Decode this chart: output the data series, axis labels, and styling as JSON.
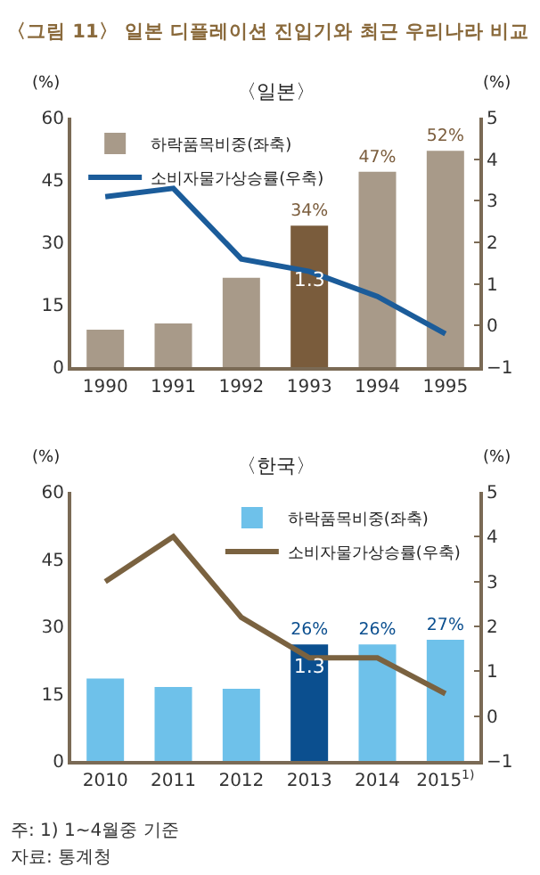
{
  "chart_data": [
    {
      "type": "bar",
      "title": "〈그림 11〉 일본 디플레이션 진입기와 최근 우리나라 비교",
      "subtitle": "〈일본〉",
      "ylabel": "(%)",
      "y2label": "(%)",
      "categories": [
        "1990",
        "1991",
        "1992",
        "1993",
        "1994",
        "1995"
      ],
      "series": [
        {
          "name": "하락품목비중(좌축)",
          "color": "#a89a89",
          "colors": [
            "#a89a89",
            "#a89a89",
            "#a89a89",
            "#7a5c3c",
            "#a89a89",
            "#a89a89"
          ],
          "values": [
            9,
            10.5,
            21.5,
            34,
            47,
            52
          ],
          "value_labels": [
            null,
            null,
            null,
            "34%",
            "47%",
            "52%"
          ]
        },
        {
          "name": "소비자물가상승률(우축)",
          "type": "line",
          "axis": "y2",
          "color": "#1b5c9a",
          "values": [
            3.1,
            3.3,
            1.6,
            1.3,
            0.7,
            -0.2
          ],
          "value_labels": [
            null,
            null,
            null,
            "1.3",
            null,
            null
          ]
        }
      ],
      "ylim": [
        0,
        60
      ],
      "yticks": [
        0,
        15,
        30,
        45,
        60
      ],
      "y2lim": [
        -1,
        5
      ],
      "y2ticks": [
        {
          "value": -1,
          "label": "−1"
        },
        0,
        1,
        2,
        3,
        4,
        5
      ],
      "grid": false,
      "legend": "top left",
      "marker": "none",
      "line_style": "solid"
    },
    {
      "type": "bar",
      "title": "〈한국〉",
      "ylabel": "(%)",
      "y2label": "(%)",
      "categories": [
        "2010",
        "2011",
        "2012",
        "2013",
        "2014",
        "2015$^{1)}$"
      ],
      "series": [
        {
          "name": "하락품목비중(좌축)",
          "color": "#6ec1ea",
          "colors": [
            "#6ec1ea",
            "#6ec1ea",
            "#6ec1ea",
            "#0b4f8f",
            "#6ec1ea",
            "#6ec1ea"
          ],
          "values": [
            18.4,
            16.5,
            16.1,
            26,
            26,
            27
          ],
          "value_labels": [
            null,
            null,
            null,
            "26%",
            "26%",
            "27%"
          ]
        },
        {
          "name": "소비자물가상승률(우축)",
          "type": "line",
          "axis": "y2",
          "color": "#7a6240",
          "values": [
            3.0,
            4.0,
            2.2,
            1.3,
            1.3,
            0.5
          ],
          "value_labels": [
            null,
            null,
            null,
            "1.3",
            null,
            null
          ]
        }
      ],
      "ylim": [
        0,
        60
      ],
      "yticks": [
        0,
        15,
        30,
        45,
        60
      ],
      "y2lim": [
        -1,
        5
      ],
      "y2ticks": [
        {
          "value": -1,
          "label": "−1"
        },
        0,
        1,
        2,
        3,
        4,
        5
      ],
      "grid": false,
      "legend": "top right",
      "marker": "none",
      "line_style": "solid",
      "annotations": [
        "주: 1) 1~4월중 기준",
        "자료: 통계청"
      ]
    }
  ]
}
